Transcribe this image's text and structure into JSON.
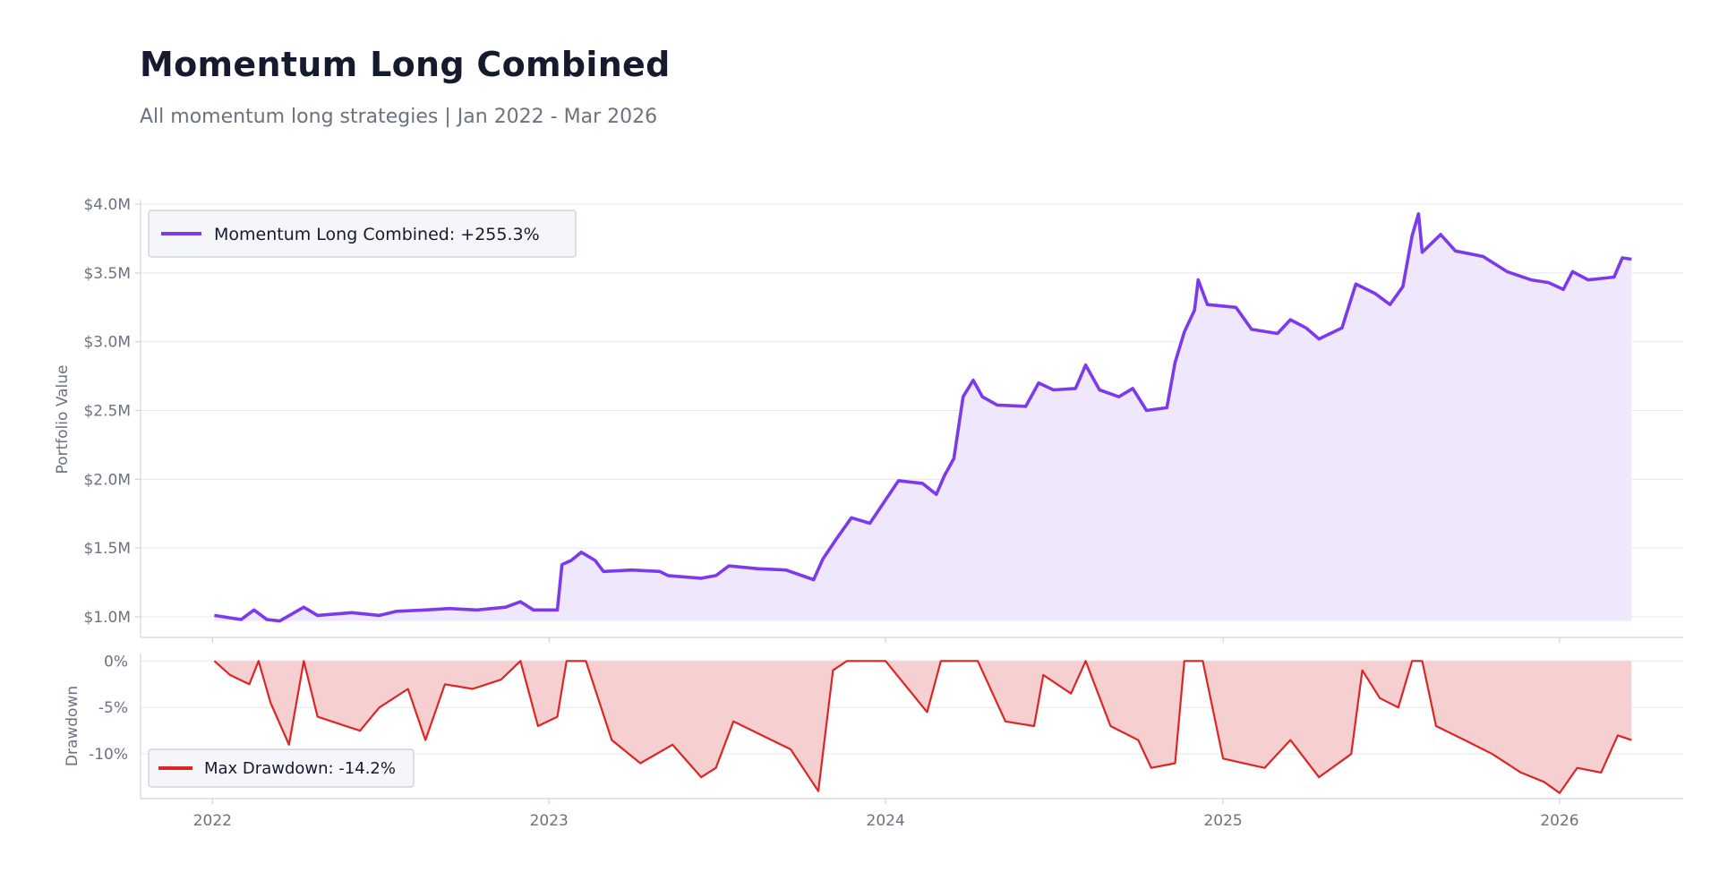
{
  "header": {
    "title": "Momentum Long Combined",
    "subtitle": "All momentum long strategies | Jan 2022 - Mar 2026"
  },
  "colors": {
    "portfolio_line": "#7c3aed",
    "portfolio_fill": "#efe8fc",
    "drawdown_line": "#dc2626",
    "drawdown_fill": "#f6cfd1",
    "grid": "#e5e7eb",
    "axis": "#d1d5db"
  },
  "chart_data": [
    {
      "type": "area",
      "ylabel": "Portfolio Value",
      "xlabel": "",
      "x_ticks": [
        "2022",
        "2023",
        "2024",
        "2025",
        "2026"
      ],
      "y_ticks": [
        "$1.0M",
        "$1.5M",
        "$2.0M",
        "$2.5M",
        "$3.0M",
        "$3.5M",
        "$4.0M"
      ],
      "ylim": [
        0.85,
        4.02
      ],
      "xlim": [
        "2021-10-15",
        "2026-05-15"
      ],
      "grid": true,
      "legend_position": "top-left",
      "series": [
        {
          "name": "Momentum Long Combined: +255.3%",
          "unit": "$M",
          "points": [
            [
              "2022-01-03",
              1.01
            ],
            [
              "2022-02-01",
              0.98
            ],
            [
              "2022-02-15",
              1.05
            ],
            [
              "2022-03-01",
              0.98
            ],
            [
              "2022-03-15",
              0.97
            ],
            [
              "2022-04-10",
              1.07
            ],
            [
              "2022-04-25",
              1.01
            ],
            [
              "2022-06-01",
              1.03
            ],
            [
              "2022-07-01",
              1.01
            ],
            [
              "2022-07-20",
              1.04
            ],
            [
              "2022-08-20",
              1.05
            ],
            [
              "2022-09-15",
              1.06
            ],
            [
              "2022-10-15",
              1.05
            ],
            [
              "2022-11-15",
              1.07
            ],
            [
              "2022-12-01",
              1.11
            ],
            [
              "2022-12-15",
              1.05
            ],
            [
              "2023-01-10",
              1.05
            ],
            [
              "2023-01-15",
              1.38
            ],
            [
              "2023-01-25",
              1.41
            ],
            [
              "2023-02-05",
              1.47
            ],
            [
              "2023-02-20",
              1.41
            ],
            [
              "2023-03-01",
              1.33
            ],
            [
              "2023-04-01",
              1.34
            ],
            [
              "2023-05-01",
              1.33
            ],
            [
              "2023-05-10",
              1.3
            ],
            [
              "2023-06-15",
              1.28
            ],
            [
              "2023-07-01",
              1.3
            ],
            [
              "2023-07-15",
              1.37
            ],
            [
              "2023-08-15",
              1.35
            ],
            [
              "2023-09-15",
              1.34
            ],
            [
              "2023-10-15",
              1.27
            ],
            [
              "2023-10-25",
              1.42
            ],
            [
              "2023-11-10",
              1.58
            ],
            [
              "2023-11-25",
              1.72
            ],
            [
              "2023-12-15",
              1.68
            ],
            [
              "2024-01-01",
              1.85
            ],
            [
              "2024-01-15",
              1.99
            ],
            [
              "2024-02-10",
              1.97
            ],
            [
              "2024-02-25",
              1.89
            ],
            [
              "2024-03-05",
              2.03
            ],
            [
              "2024-03-15",
              2.15
            ],
            [
              "2024-03-25",
              2.6
            ],
            [
              "2024-04-05",
              2.72
            ],
            [
              "2024-04-15",
              2.6
            ],
            [
              "2024-05-01",
              2.54
            ],
            [
              "2024-06-01",
              2.53
            ],
            [
              "2024-06-15",
              2.7
            ],
            [
              "2024-07-01",
              2.65
            ],
            [
              "2024-07-25",
              2.66
            ],
            [
              "2024-08-05",
              2.83
            ],
            [
              "2024-08-20",
              2.65
            ],
            [
              "2024-09-10",
              2.6
            ],
            [
              "2024-09-25",
              2.66
            ],
            [
              "2024-10-10",
              2.5
            ],
            [
              "2024-11-01",
              2.52
            ],
            [
              "2024-11-10",
              2.85
            ],
            [
              "2024-11-20",
              3.07
            ],
            [
              "2024-12-01",
              3.23
            ],
            [
              "2024-12-05",
              3.45
            ],
            [
              "2024-12-15",
              3.27
            ],
            [
              "2025-01-15",
              3.25
            ],
            [
              "2025-02-01",
              3.09
            ],
            [
              "2025-03-01",
              3.06
            ],
            [
              "2025-03-15",
              3.16
            ],
            [
              "2025-04-01",
              3.1
            ],
            [
              "2025-04-15",
              3.02
            ],
            [
              "2025-05-10",
              3.1
            ],
            [
              "2025-05-25",
              3.42
            ],
            [
              "2025-06-15",
              3.35
            ],
            [
              "2025-07-01",
              3.27
            ],
            [
              "2025-07-15",
              3.4
            ],
            [
              "2025-07-25",
              3.77
            ],
            [
              "2025-08-01",
              3.93
            ],
            [
              "2025-08-05",
              3.65
            ],
            [
              "2025-08-25",
              3.78
            ],
            [
              "2025-09-10",
              3.66
            ],
            [
              "2025-10-10",
              3.62
            ],
            [
              "2025-11-05",
              3.51
            ],
            [
              "2025-12-01",
              3.45
            ],
            [
              "2025-12-20",
              3.43
            ],
            [
              "2026-01-05",
              3.38
            ],
            [
              "2026-01-15",
              3.51
            ],
            [
              "2026-02-01",
              3.45
            ],
            [
              "2026-03-01",
              3.47
            ],
            [
              "2026-03-10",
              3.61
            ],
            [
              "2026-03-20",
              3.6
            ]
          ]
        }
      ]
    },
    {
      "type": "area",
      "ylabel": "Drawdown",
      "xlabel": "",
      "x_ticks": [
        "2022",
        "2023",
        "2024",
        "2025",
        "2026"
      ],
      "y_ticks": [
        "0%",
        "-5%",
        "-10%"
      ],
      "ylim": [
        -14.8,
        0.8
      ],
      "xlim": [
        "2021-10-15",
        "2026-05-15"
      ],
      "grid": true,
      "legend_position": "bottom-left",
      "series": [
        {
          "name": "Max Drawdown: -14.2%",
          "unit": "%",
          "points": [
            [
              "2022-01-03",
              0.0
            ],
            [
              "2022-01-20",
              -1.5
            ],
            [
              "2022-02-10",
              -2.5
            ],
            [
              "2022-02-20",
              0.0
            ],
            [
              "2022-03-05",
              -4.5
            ],
            [
              "2022-03-25",
              -9.0
            ],
            [
              "2022-04-10",
              0.0
            ],
            [
              "2022-04-25",
              -6.0
            ],
            [
              "2022-06-10",
              -7.5
            ],
            [
              "2022-07-01",
              -5.0
            ],
            [
              "2022-08-01",
              -3.0
            ],
            [
              "2022-08-20",
              -8.5
            ],
            [
              "2022-09-10",
              -2.5
            ],
            [
              "2022-10-10",
              -3.0
            ],
            [
              "2022-11-10",
              -2.0
            ],
            [
              "2022-12-01",
              0.0
            ],
            [
              "2022-12-20",
              -7.0
            ],
            [
              "2023-01-10",
              -6.0
            ],
            [
              "2023-01-20",
              0.0
            ],
            [
              "2023-02-10",
              0.0
            ],
            [
              "2023-03-10",
              -8.5
            ],
            [
              "2023-04-10",
              -11.0
            ],
            [
              "2023-05-15",
              -9.0
            ],
            [
              "2023-06-15",
              -12.5
            ],
            [
              "2023-07-01",
              -11.5
            ],
            [
              "2023-07-20",
              -6.5
            ],
            [
              "2023-08-20",
              -8.0
            ],
            [
              "2023-09-20",
              -9.5
            ],
            [
              "2023-10-20",
              -14.0
            ],
            [
              "2023-11-05",
              -1.0
            ],
            [
              "2023-11-20",
              0.0
            ],
            [
              "2024-01-01",
              0.0
            ],
            [
              "2024-02-15",
              -5.5
            ],
            [
              "2024-03-01",
              0.0
            ],
            [
              "2024-04-10",
              0.0
            ],
            [
              "2024-05-10",
              -6.5
            ],
            [
              "2024-06-10",
              -7.0
            ],
            [
              "2024-06-20",
              -1.5
            ],
            [
              "2024-07-20",
              -3.5
            ],
            [
              "2024-08-05",
              0.0
            ],
            [
              "2024-09-01",
              -7.0
            ],
            [
              "2024-10-01",
              -8.5
            ],
            [
              "2024-10-15",
              -11.5
            ],
            [
              "2024-11-10",
              -11.0
            ],
            [
              "2024-11-20",
              0.0
            ],
            [
              "2024-12-10",
              0.0
            ],
            [
              "2025-01-01",
              -10.5
            ],
            [
              "2025-02-15",
              -11.5
            ],
            [
              "2025-03-15",
              -8.5
            ],
            [
              "2025-04-15",
              -12.5
            ],
            [
              "2025-05-20",
              -10.0
            ],
            [
              "2025-06-01",
              -1.0
            ],
            [
              "2025-06-20",
              -4.0
            ],
            [
              "2025-07-10",
              -5.0
            ],
            [
              "2025-07-25",
              0.0
            ],
            [
              "2025-08-05",
              0.0
            ],
            [
              "2025-08-20",
              -7.0
            ],
            [
              "2025-09-20",
              -8.5
            ],
            [
              "2025-10-20",
              -10.0
            ],
            [
              "2025-11-20",
              -12.0
            ],
            [
              "2025-12-15",
              -13.0
            ],
            [
              "2026-01-01",
              -14.2
            ],
            [
              "2026-01-20",
              -11.5
            ],
            [
              "2026-02-15",
              -12.0
            ],
            [
              "2026-03-05",
              -8.0
            ],
            [
              "2026-03-20",
              -8.5
            ]
          ]
        }
      ]
    }
  ]
}
